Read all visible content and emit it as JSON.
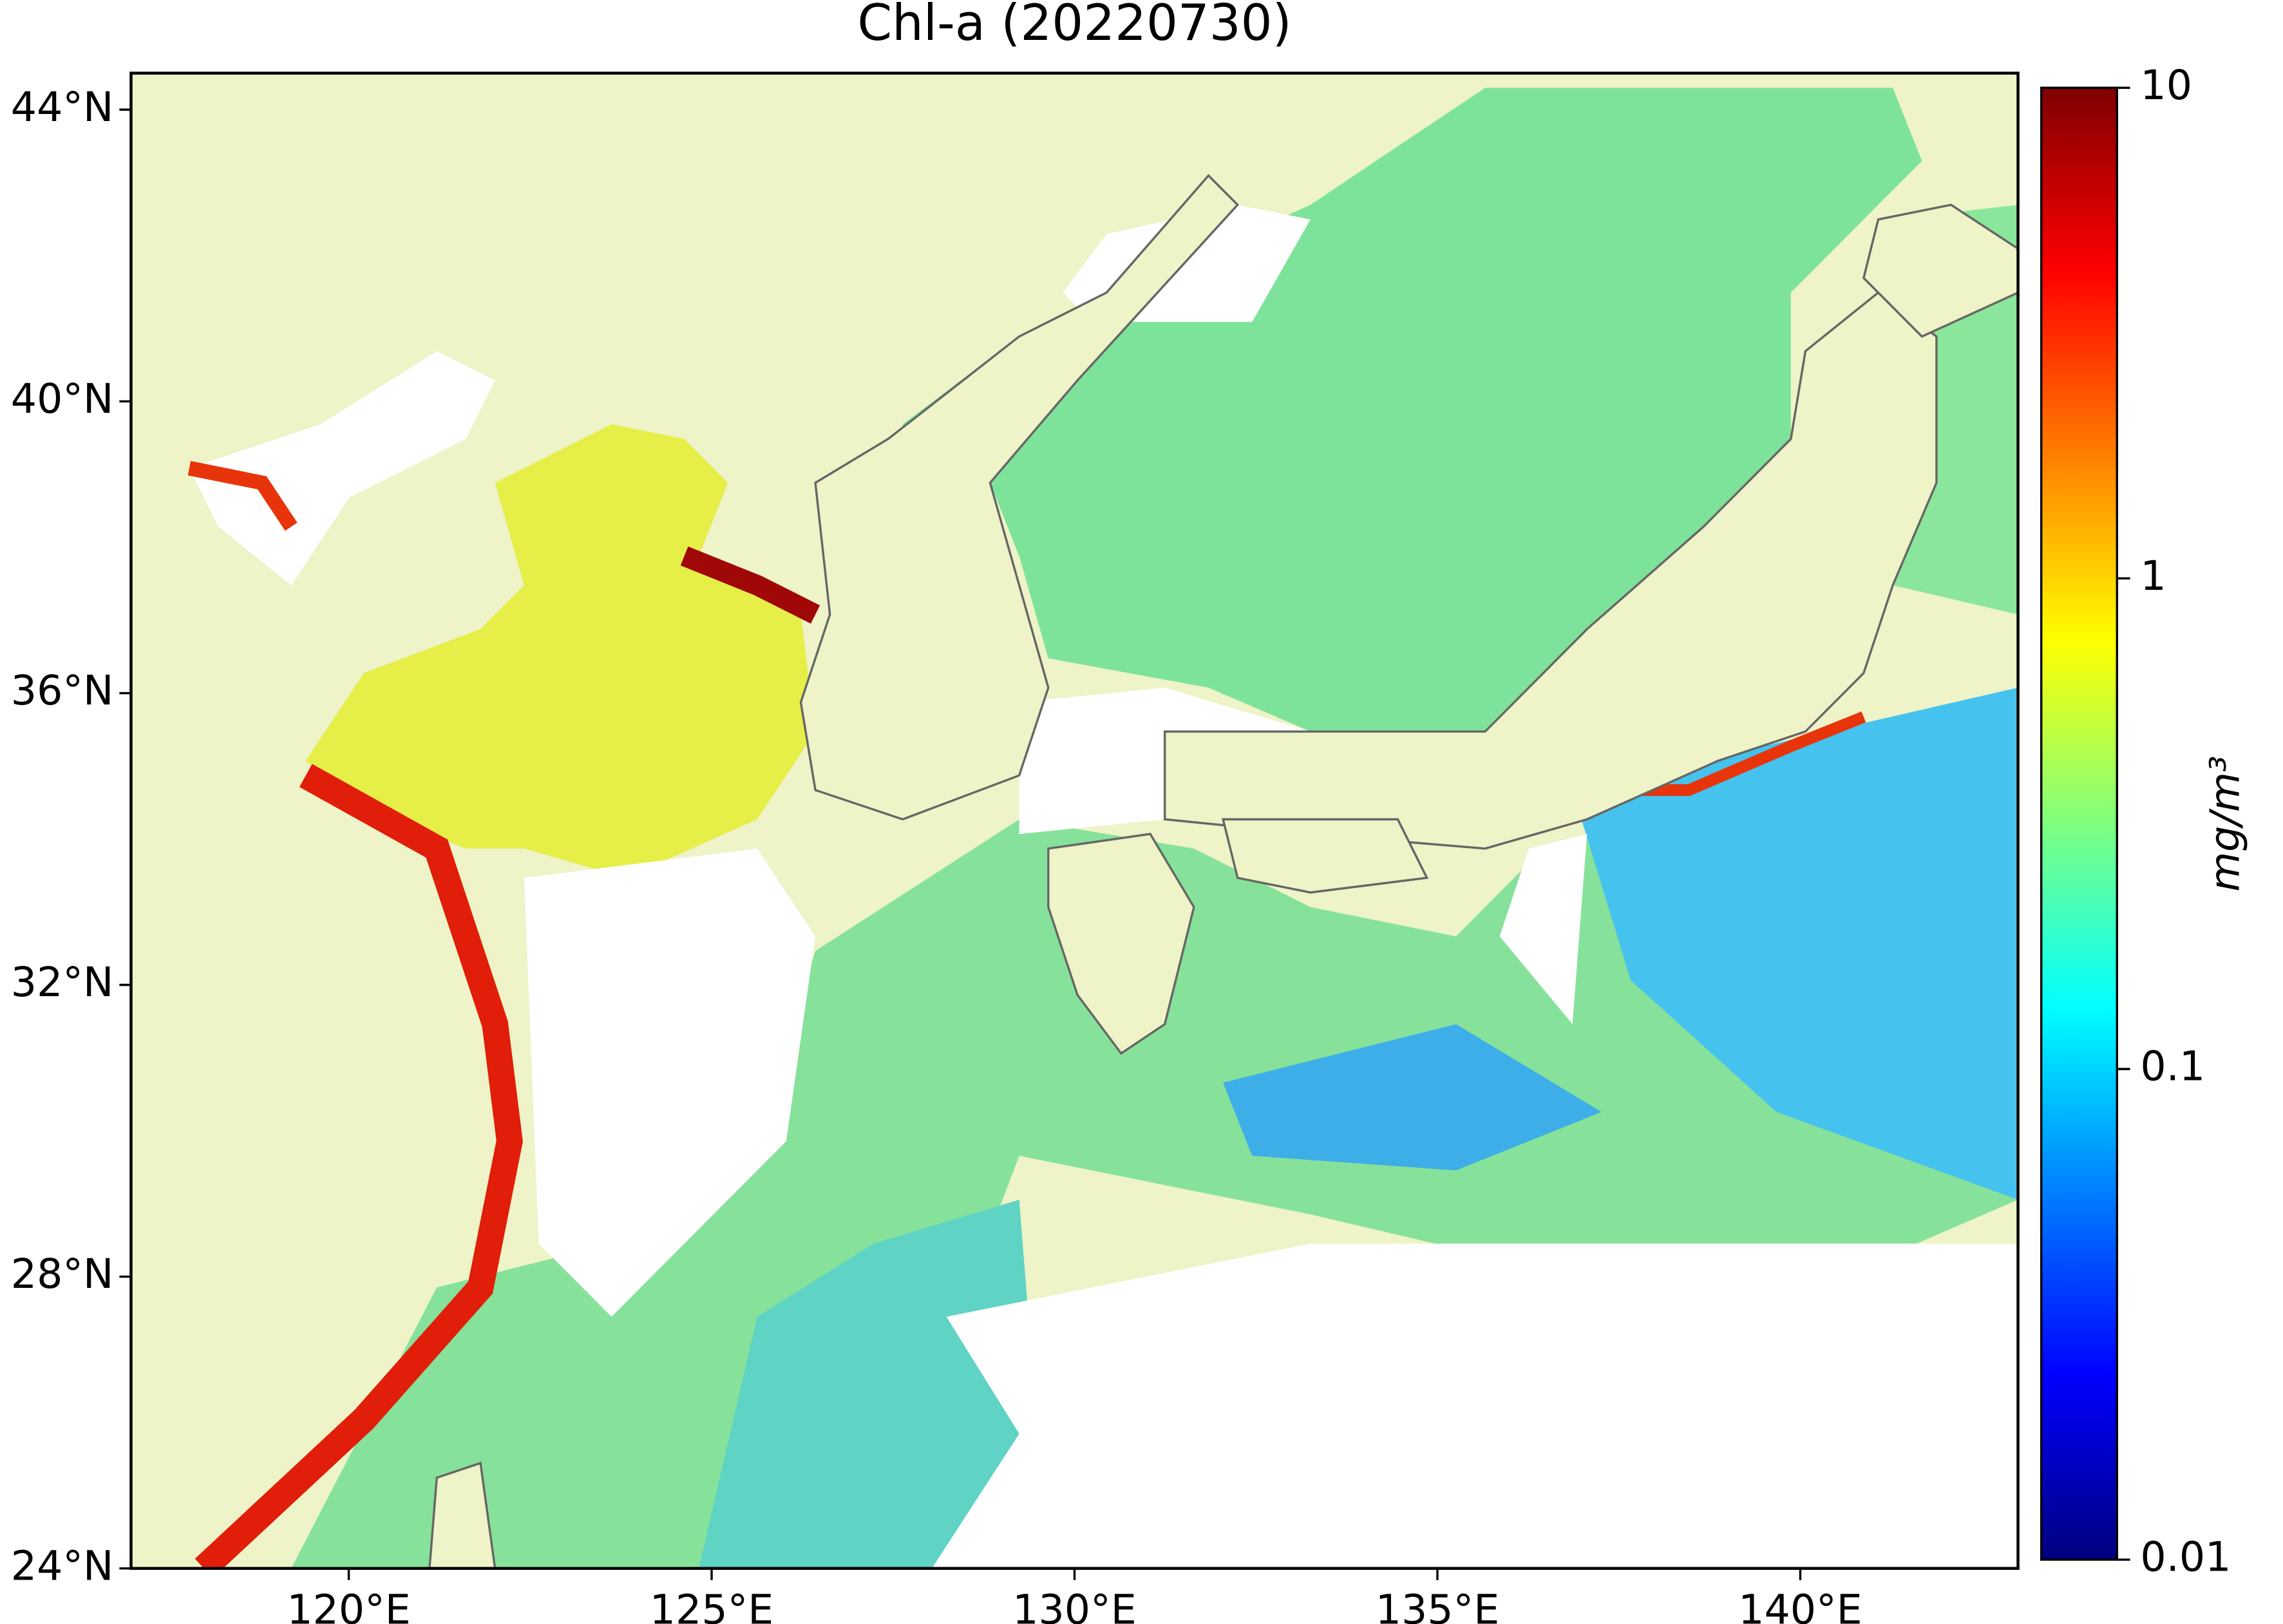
{
  "chart_data": {
    "type": "map",
    "title": "Chl-a (20220730)",
    "xlim": [
      117,
      143
    ],
    "ylim": [
      24,
      44.5
    ],
    "xticks": [
      {
        "value": 120,
        "label": "120°E"
      },
      {
        "value": 125,
        "label": "125°E"
      },
      {
        "value": 130,
        "label": "130°E"
      },
      {
        "value": 135,
        "label": "135°E"
      },
      {
        "value": 140,
        "label": "140°E"
      }
    ],
    "yticks": [
      {
        "value": 24,
        "label": "24°N"
      },
      {
        "value": 28,
        "label": "28°N"
      },
      {
        "value": 32,
        "label": "32°N"
      },
      {
        "value": 36,
        "label": "36°N"
      },
      {
        "value": 40,
        "label": "40°N"
      },
      {
        "value": 44,
        "label": "44°N"
      }
    ],
    "colorbar": {
      "label": "mg/m³",
      "scale": "log",
      "lim": [
        0.01,
        10
      ],
      "ticks": [
        0.01,
        0.1,
        1,
        10
      ],
      "colormap": "jet"
    }
  }
}
